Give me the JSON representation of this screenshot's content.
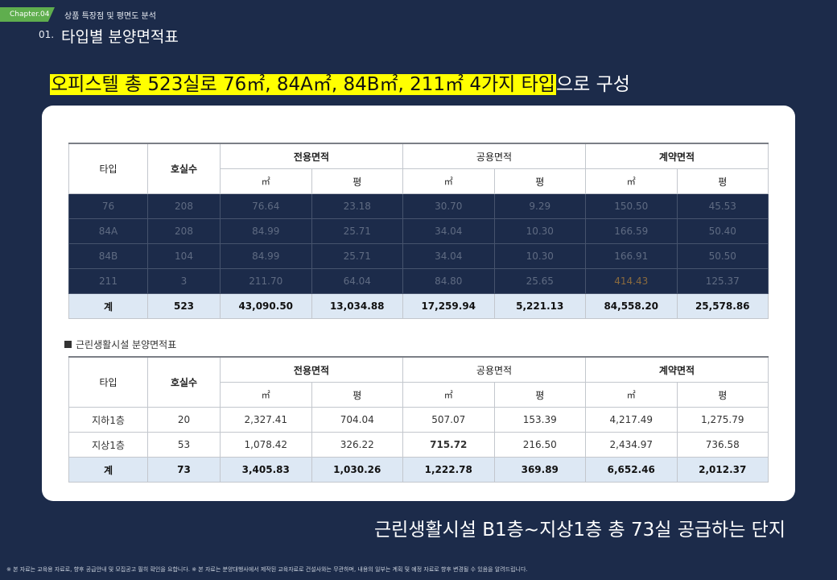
{
  "header": {
    "chapter": "Chapter.04",
    "chapter_title": "상품 특장점 및 평면도 분석",
    "section_num": "01.",
    "section_title": "타입별 분양면적표"
  },
  "headline": {
    "highlight": "오피스텔 총 523실로 76㎡, 84A㎡, 84B㎡, 211㎡ 4가지 타입",
    "rest": "으로 구성"
  },
  "table1": {
    "headers": {
      "type": "타입",
      "count": "호실수",
      "exclusive": "전용면적",
      "common": "공용면적",
      "contract": "계약면적",
      "sqm": "㎡",
      "pyeong": "평"
    },
    "rows": [
      [
        "76",
        "208",
        "76.64",
        "23.18",
        "30.70",
        "9.29",
        "150.50",
        "45.53"
      ],
      [
        "84A",
        "208",
        "84.99",
        "25.71",
        "34.04",
        "10.30",
        "166.59",
        "50.40"
      ],
      [
        "84B",
        "104",
        "84.99",
        "25.71",
        "34.04",
        "10.30",
        "166.91",
        "50.50"
      ],
      [
        "211",
        "3",
        "211.70",
        "64.04",
        "84.80",
        "25.65",
        "414.43",
        "125.37"
      ]
    ],
    "total": [
      "계",
      "523",
      "43,090.50",
      "13,034.88",
      "17,259.94",
      "5,221.13",
      "84,558.20",
      "25,578.86"
    ]
  },
  "caption2": "근린생활시설 분양면적표",
  "table2": {
    "headers": {
      "type": "타입",
      "count": "호실수",
      "exclusive": "전용면적",
      "common": "공용면적",
      "contract": "계약면적",
      "sqm": "㎡",
      "pyeong": "평"
    },
    "rows": [
      [
        "지하1층",
        "20",
        "2,327.41",
        "704.04",
        "507.07",
        "153.39",
        "4,217.49",
        "1,275.79"
      ],
      [
        "지상1층",
        "53",
        "1,078.42",
        "326.22",
        "715.72",
        "216.50",
        "2,434.97",
        "736.58"
      ]
    ],
    "total": [
      "계",
      "73",
      "3,405.83",
      "1,030.26",
      "1,222.78",
      "369.89",
      "6,652.46",
      "2,012.37"
    ]
  },
  "bottom_line": "근린생활시설 B1층~지상1층 총 73실 공급하는 단지",
  "footnote": "※ 본 자료는 교육용 자료로, 향후 공급안내 및 모집공고 필히 확인을 요합니다. ※ 본 자료는 분양대행사에서 제작된 교육자료로 건설사와는 무관하며, 내용의 일부는 계획 및 예정 자료로 향후 변경될 수 있음을 알려드립니다."
}
